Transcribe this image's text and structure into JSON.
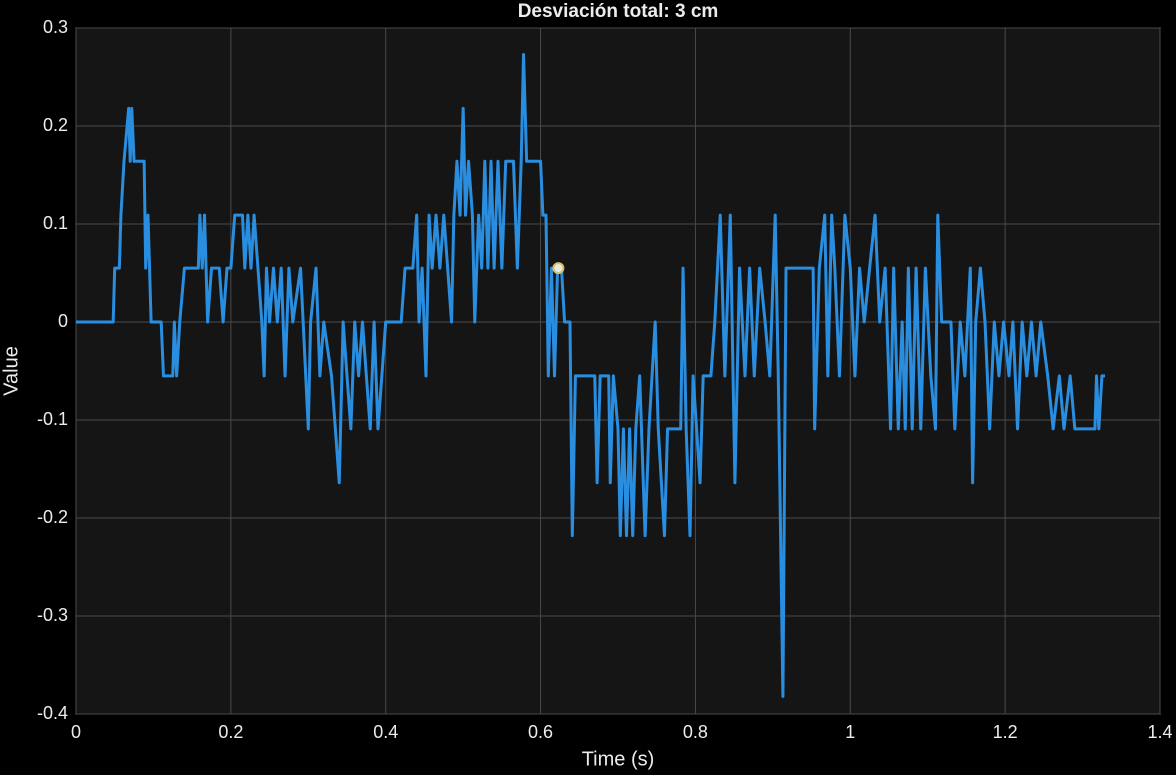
{
  "chart_data": {
    "type": "line",
    "title": "Desviación total: 3 cm",
    "xlabel": "Time (s)",
    "ylabel": "Value",
    "xlim": [
      0,
      1.4
    ],
    "ylim": [
      -0.4,
      0.3
    ],
    "xticks": [
      0,
      0.2,
      0.4,
      0.6,
      0.8,
      1,
      1.2,
      1.4
    ],
    "yticks": [
      -0.4,
      -0.3,
      -0.2,
      -0.1,
      0,
      0.1,
      0.2,
      0.3
    ],
    "grid": true,
    "x": [
      0,
      0.048,
      0.05,
      0.056,
      0.058,
      0.062,
      0.068,
      0.07,
      0.072,
      0.075,
      0.088,
      0.09,
      0.093,
      0.097,
      0.11,
      0.113,
      0.125,
      0.127,
      0.13,
      0.134,
      0.14,
      0.158,
      0.16,
      0.163,
      0.166,
      0.17,
      0.175,
      0.185,
      0.19,
      0.195,
      0.2,
      0.205,
      0.215,
      0.218,
      0.222,
      0.226,
      0.23,
      0.235,
      0.24,
      0.243,
      0.246,
      0.25,
      0.255,
      0.26,
      0.265,
      0.27,
      0.275,
      0.28,
      0.29,
      0.3,
      0.303,
      0.31,
      0.315,
      0.32,
      0.33,
      0.34,
      0.345,
      0.35,
      0.355,
      0.36,
      0.365,
      0.37,
      0.375,
      0.38,
      0.385,
      0.39,
      0.395,
      0.4,
      0.42,
      0.425,
      0.435,
      0.44,
      0.443,
      0.447,
      0.452,
      0.456,
      0.46,
      0.465,
      0.47,
      0.475,
      0.48,
      0.485,
      0.488,
      0.492,
      0.496,
      0.5,
      0.503,
      0.507,
      0.512,
      0.515,
      0.52,
      0.524,
      0.528,
      0.532,
      0.536,
      0.54,
      0.545,
      0.55,
      0.555,
      0.565,
      0.57,
      0.575,
      0.578,
      0.582,
      0.6,
      0.603,
      0.607,
      0.61,
      0.614,
      0.618,
      0.622,
      0.627,
      0.631,
      0.638,
      0.641,
      0.645,
      0.67,
      0.673,
      0.677,
      0.688,
      0.69,
      0.694,
      0.7,
      0.703,
      0.707,
      0.711,
      0.715,
      0.719,
      0.723,
      0.728,
      0.735,
      0.74,
      0.748,
      0.752,
      0.76,
      0.764,
      0.781,
      0.784,
      0.788,
      0.793,
      0.797,
      0.806,
      0.81,
      0.82,
      0.825,
      0.832,
      0.838,
      0.845,
      0.851,
      0.857,
      0.864,
      0.87,
      0.876,
      0.883,
      0.89,
      0.896,
      0.903,
      0.907,
      0.913,
      0.917,
      0.952,
      0.954,
      0.96,
      0.967,
      0.971,
      0.976,
      0.98,
      0.986,
      0.993,
      1.0,
      1.006,
      1.012,
      1.018,
      1.025,
      1.032,
      1.038,
      1.045,
      1.052,
      1.056,
      1.062,
      1.067,
      1.071,
      1.075,
      1.08,
      1.085,
      1.091,
      1.097,
      1.104,
      1.11,
      1.113,
      1.118,
      1.13,
      1.135,
      1.142,
      1.148,
      1.155,
      1.158,
      1.162,
      1.168,
      1.174,
      1.18,
      1.186,
      1.192,
      1.198,
      1.205,
      1.21,
      1.216,
      1.222,
      1.228,
      1.234,
      1.24,
      1.246,
      1.255,
      1.262,
      1.27,
      1.276,
      1.284,
      1.29,
      1.316,
      1.318,
      1.321,
      1.325,
      1.329
    ],
    "series": [
      {
        "color": "#2a8ee0",
        "values": [
          0,
          0,
          0.055,
          0.055,
          0.109,
          0.164,
          0.218,
          0.164,
          0.218,
          0.164,
          0.164,
          0.055,
          0.109,
          0,
          0,
          -0.055,
          -0.055,
          0,
          -0.055,
          0,
          0.055,
          0.055,
          0.109,
          0.055,
          0.109,
          0,
          0.055,
          0.055,
          0,
          0.055,
          0.055,
          0.109,
          0.109,
          0.055,
          0.109,
          0.055,
          0.109,
          0.055,
          0,
          -0.055,
          0.055,
          0,
          0.055,
          0,
          0.055,
          -0.055,
          0.055,
          0,
          0.055,
          -0.109,
          0,
          0.055,
          -0.055,
          0,
          -0.055,
          -0.164,
          0,
          -0.055,
          -0.109,
          0,
          -0.055,
          0,
          -0.055,
          -0.109,
          0,
          -0.109,
          -0.055,
          0,
          0,
          0.055,
          0.055,
          0.109,
          0,
          0.055,
          -0.055,
          0.109,
          0.055,
          0.109,
          0.055,
          0.109,
          0.055,
          0,
          0.109,
          0.164,
          0.109,
          0.218,
          0.109,
          0.164,
          0.109,
          0,
          0.109,
          0.055,
          0.164,
          0.055,
          0.164,
          0.055,
          0.164,
          0.055,
          0.164,
          0.164,
          0.055,
          0.164,
          0.273,
          0.164,
          0.164,
          0.109,
          0.109,
          -0.055,
          0.055,
          -0.055,
          0.055,
          0.055,
          0,
          0,
          -0.218,
          -0.055,
          -0.055,
          -0.164,
          -0.055,
          -0.055,
          -0.164,
          -0.055,
          -0.109,
          -0.218,
          -0.109,
          -0.218,
          -0.109,
          -0.218,
          -0.109,
          -0.055,
          -0.218,
          -0.109,
          0,
          -0.109,
          -0.218,
          -0.109,
          -0.109,
          0.055,
          -0.109,
          -0.218,
          -0.055,
          -0.164,
          -0.055,
          -0.055,
          0,
          0.109,
          -0.055,
          0.109,
          -0.164,
          0.055,
          -0.055,
          0.055,
          -0.055,
          0.055,
          0,
          -0.055,
          0.109,
          -0.055,
          -0.382,
          0.055,
          0.055,
          -0.109,
          0.055,
          0.109,
          -0.055,
          0.109,
          0.055,
          -0.055,
          0.109,
          0.055,
          -0.055,
          0.055,
          0,
          0.055,
          0.109,
          0,
          0.055,
          -0.109,
          0.055,
          -0.109,
          0,
          -0.109,
          0.055,
          -0.109,
          0.055,
          -0.109,
          0.055,
          -0.055,
          -0.109,
          0.109,
          0,
          0,
          -0.109,
          0,
          -0.055,
          0.055,
          -0.164,
          0,
          0.055,
          0,
          -0.109,
          0,
          -0.055,
          0,
          -0.055,
          0,
          -0.109,
          0,
          -0.055,
          0,
          -0.055,
          0,
          -0.055,
          -0.109,
          -0.055,
          -0.109,
          -0.055,
          -0.109,
          -0.109,
          -0.055,
          -0.109,
          -0.055,
          -0.055
        ]
      }
    ],
    "data_tip": {
      "x": 0.623,
      "y": 0.055
    }
  }
}
